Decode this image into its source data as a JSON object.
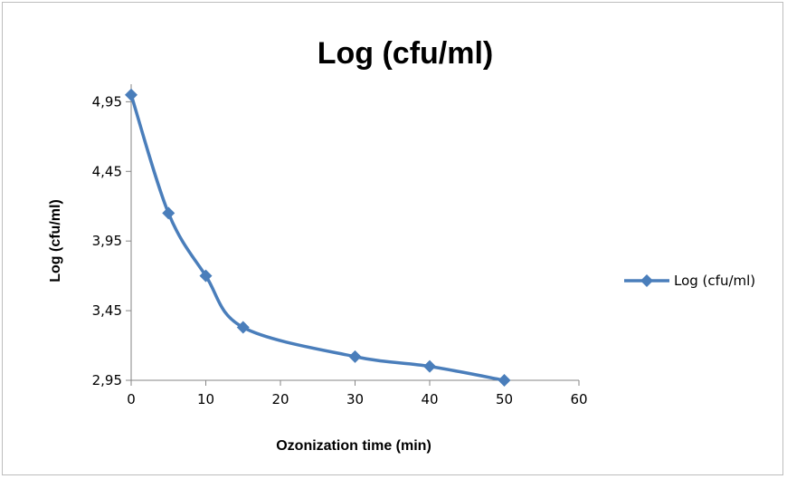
{
  "chart_data": {
    "type": "line",
    "title": "Log (cfu/ml)",
    "xlabel": "Ozonization time (min)",
    "ylabel": "Log (cfu/ml)",
    "xlim": [
      0,
      60
    ],
    "ylim": [
      2.95,
      5.05
    ],
    "x_ticks": [
      "0",
      "10",
      "20",
      "30",
      "40",
      "50",
      "60"
    ],
    "y_ticks": [
      "2,95",
      "3,45",
      "3,95",
      "4,45",
      "4,95"
    ],
    "x_tick_values": [
      0,
      10,
      20,
      30,
      40,
      50,
      60
    ],
    "y_tick_values": [
      2.95,
      3.45,
      3.95,
      4.45,
      4.95
    ],
    "grid": false,
    "legend_position": "right",
    "series": [
      {
        "name": "Log (cfu/ml)",
        "color": "#4a7ebb",
        "marker": "diamond",
        "smooth": true,
        "x": [
          0,
          5,
          10,
          15,
          30,
          40,
          50
        ],
        "y": [
          5.0,
          4.15,
          3.7,
          3.33,
          3.12,
          3.05,
          2.95
        ]
      }
    ]
  }
}
